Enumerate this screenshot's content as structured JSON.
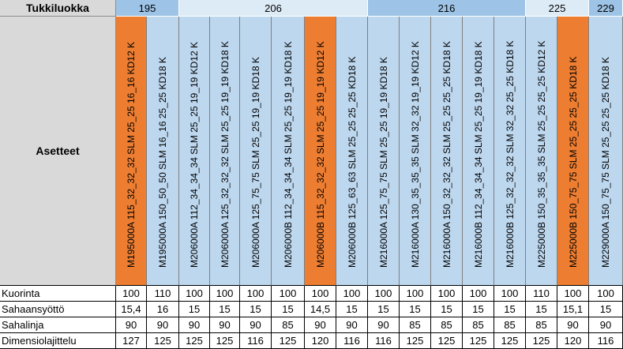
{
  "header": {
    "title": "Tukkiluokka"
  },
  "side": {
    "asetteet_label": "Asetteet"
  },
  "classes": [
    "195",
    "206",
    "216",
    "225",
    "229"
  ],
  "settings": [
    "M195000A 115_32_32_32 SLM 25_25 16_16 KD12 K",
    "M195000A 150_50_50 SLM 16_16 25_25 KD18 K",
    "M206000A 112_34_34_34 SLM 25_25 19_19 KD12 K",
    "M206000A 125_32_32_32 SLM 25_25 19_19 KD18 K",
    "M206000A 125_75_75 SLM 25_25 19_19 KD18 K",
    "M206000B 112_34_34_34 SLM 25_25 19_19 KD18 K",
    "M206000B 115_32_32_32 SLM 25_25 19_19 KD12 K",
    "M206000B 125_63_63 SLM 25_25 25_25 KD18 K",
    "M216000A 125_75_75 SLM 25_25 19_19 KD18 K",
    "M216000A 130_35_35_35 SLM 32_32 19_19 KD12 K",
    "M216000A 150_32_32_32 SLM 25_25 25_25 KD18 K",
    "M216000B 112_34_34_34 SLM 25_25 19_19 KD18 K",
    "M216000B 125_32_32_32 SLM 32_32 25_25 KD18 K",
    "M225000B 150_35_35_35 SLM 25_25 25_25 KD12 K",
    "M225000B 150_75_75 SLM 25_25 25_25 KD18 K",
    "M229000A 150_75_75 SLM 25_25 25_25 KD18 K"
  ],
  "rows": [
    {
      "label": "Kuorinta",
      "values": [
        "100",
        "110",
        "100",
        "100",
        "100",
        "100",
        "100",
        "100",
        "100",
        "100",
        "100",
        "100",
        "100",
        "110",
        "100",
        "100"
      ]
    },
    {
      "label": "Sahaansyöttö",
      "values": [
        "15,4",
        "16",
        "15",
        "15",
        "15",
        "15",
        "14,5",
        "15",
        "15",
        "15",
        "15",
        "15",
        "15",
        "15",
        "15,1",
        "15"
      ]
    },
    {
      "label": "Sahalinja",
      "values": [
        "90",
        "90",
        "90",
        "90",
        "90",
        "85",
        "90",
        "90",
        "90",
        "85",
        "85",
        "85",
        "85",
        "85",
        "90",
        "90"
      ]
    },
    {
      "label": "Dimensiolajittelu",
      "values": [
        "127",
        "125",
        "125",
        "125",
        "116",
        "125",
        "120",
        "116",
        "116",
        "125",
        "125",
        "125",
        "125",
        "125",
        "120",
        "116"
      ]
    }
  ],
  "colors": {
    "class_dark": "#9dc3e6",
    "class_light": "#ddebf7",
    "setting_blue": "#bdd7ee",
    "setting_orange": "#ed7d31",
    "label_gray": "#d9d9d9"
  },
  "highlighted": [
    0,
    6,
    14
  ]
}
